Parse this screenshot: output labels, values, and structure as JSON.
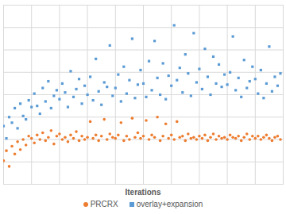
{
  "chart_data": {
    "type": "scatter",
    "x_label": "Iterations",
    "x": [
      0,
      10,
      20,
      30,
      40,
      50,
      60,
      70,
      80,
      90,
      100,
      110,
      120,
      130,
      140,
      150,
      160,
      170,
      180,
      190,
      200,
      210,
      220,
      230,
      240,
      250,
      260,
      270,
      280,
      290,
      300,
      310,
      320,
      330,
      340,
      350,
      360,
      370,
      380,
      390,
      400,
      410,
      420,
      430,
      440,
      450,
      460,
      470,
      480,
      490,
      500,
      510,
      520,
      530,
      540,
      550,
      560,
      570,
      580,
      590,
      600,
      610,
      620,
      630,
      640,
      650,
      660,
      670,
      680,
      690,
      700,
      710,
      720,
      730,
      740,
      750,
      760,
      770,
      780,
      790,
      800,
      810,
      820,
      830,
      840,
      850,
      860,
      870,
      880,
      890,
      900,
      910,
      920,
      930,
      940,
      950,
      960,
      970,
      980,
      990
    ],
    "series": [
      {
        "name": "PRCRX",
        "color": "#ed7d31",
        "marker": "circle",
        "values": [
          2.1,
          3.0,
          1.6,
          3.4,
          2.7,
          3.8,
          3.1,
          4.0,
          3.5,
          4.3,
          4.1,
          3.7,
          4.4,
          4.0,
          4.6,
          3.9,
          4.2,
          4.8,
          3.6,
          4.3,
          4.5,
          4.0,
          4.2,
          3.8,
          4.4,
          4.1,
          4.7,
          3.9,
          4.3,
          4.0,
          4.2,
          5.6,
          4.1,
          4.4,
          3.9,
          4.3,
          5.8,
          4.0,
          4.5,
          4.2,
          4.1,
          4.4,
          5.5,
          3.9,
          4.3,
          4.0,
          5.9,
          4.2,
          4.6,
          4.1,
          4.3,
          5.7,
          4.0,
          4.4,
          4.2,
          6.0,
          3.9,
          4.3,
          5.4,
          4.1,
          4.4,
          4.0,
          5.6,
          4.2,
          4.3,
          3.9,
          4.5,
          4.1,
          4.2,
          4.0,
          4.3,
          4.1,
          4.4,
          3.9,
          4.2,
          4.5,
          4.0,
          4.3,
          4.1,
          4.2,
          4.0,
          4.4,
          4.2,
          4.1,
          4.3,
          3.9,
          4.2,
          4.5,
          4.0,
          4.3,
          4.1,
          4.3,
          4.0,
          4.2,
          4.4,
          4.1,
          3.9,
          4.2,
          4.3,
          4.0
        ]
      },
      {
        "name": "overlay+expansion",
        "color": "#5b9bd5",
        "marker": "square",
        "values": [
          5.2,
          4.1,
          6.0,
          5.5,
          6.8,
          5.0,
          7.2,
          6.1,
          5.8,
          7.5,
          6.9,
          8.1,
          7.0,
          6.3,
          8.6,
          7.4,
          9.2,
          6.8,
          7.9,
          8.4,
          7.6,
          9.0,
          8.2,
          6.9,
          10.1,
          7.8,
          8.5,
          9.4,
          7.2,
          8.8,
          8.0,
          9.6,
          7.5,
          11.2,
          8.3,
          7.1,
          9.1,
          8.7,
          12.4,
          7.9,
          8.6,
          9.8,
          7.4,
          10.5,
          8.1,
          9.3,
          13.0,
          7.7,
          8.9,
          10.2,
          9.0,
          7.8,
          11.0,
          8.4,
          12.8,
          9.5,
          8.0,
          10.8,
          7.6,
          9.7,
          8.8,
          14.2,
          9.3,
          10.4,
          8.2,
          11.6,
          9.9,
          7.9,
          13.5,
          9.1,
          10.3,
          8.5,
          12.1,
          9.6,
          8.0,
          11.4,
          9.0,
          10.7,
          8.7,
          9.8,
          8.9,
          10.0,
          13.2,
          8.4,
          9.5,
          7.8,
          11.1,
          8.6,
          9.2,
          10.5,
          9.4,
          8.1,
          10.2,
          7.7,
          9.0,
          12.3,
          8.3,
          9.6,
          8.8,
          9.9
        ]
      }
    ],
    "xlim": [
      0,
      1000
    ],
    "ylim": [
      0,
      16
    ],
    "xticks": [
      0,
      100,
      200,
      300,
      400,
      500,
      600,
      700,
      800,
      900,
      1000
    ],
    "yticks": [
      0,
      2,
      4,
      6,
      8,
      10,
      12,
      14,
      16
    ],
    "grid": true,
    "tick_labels": false,
    "legend": "bottom"
  }
}
